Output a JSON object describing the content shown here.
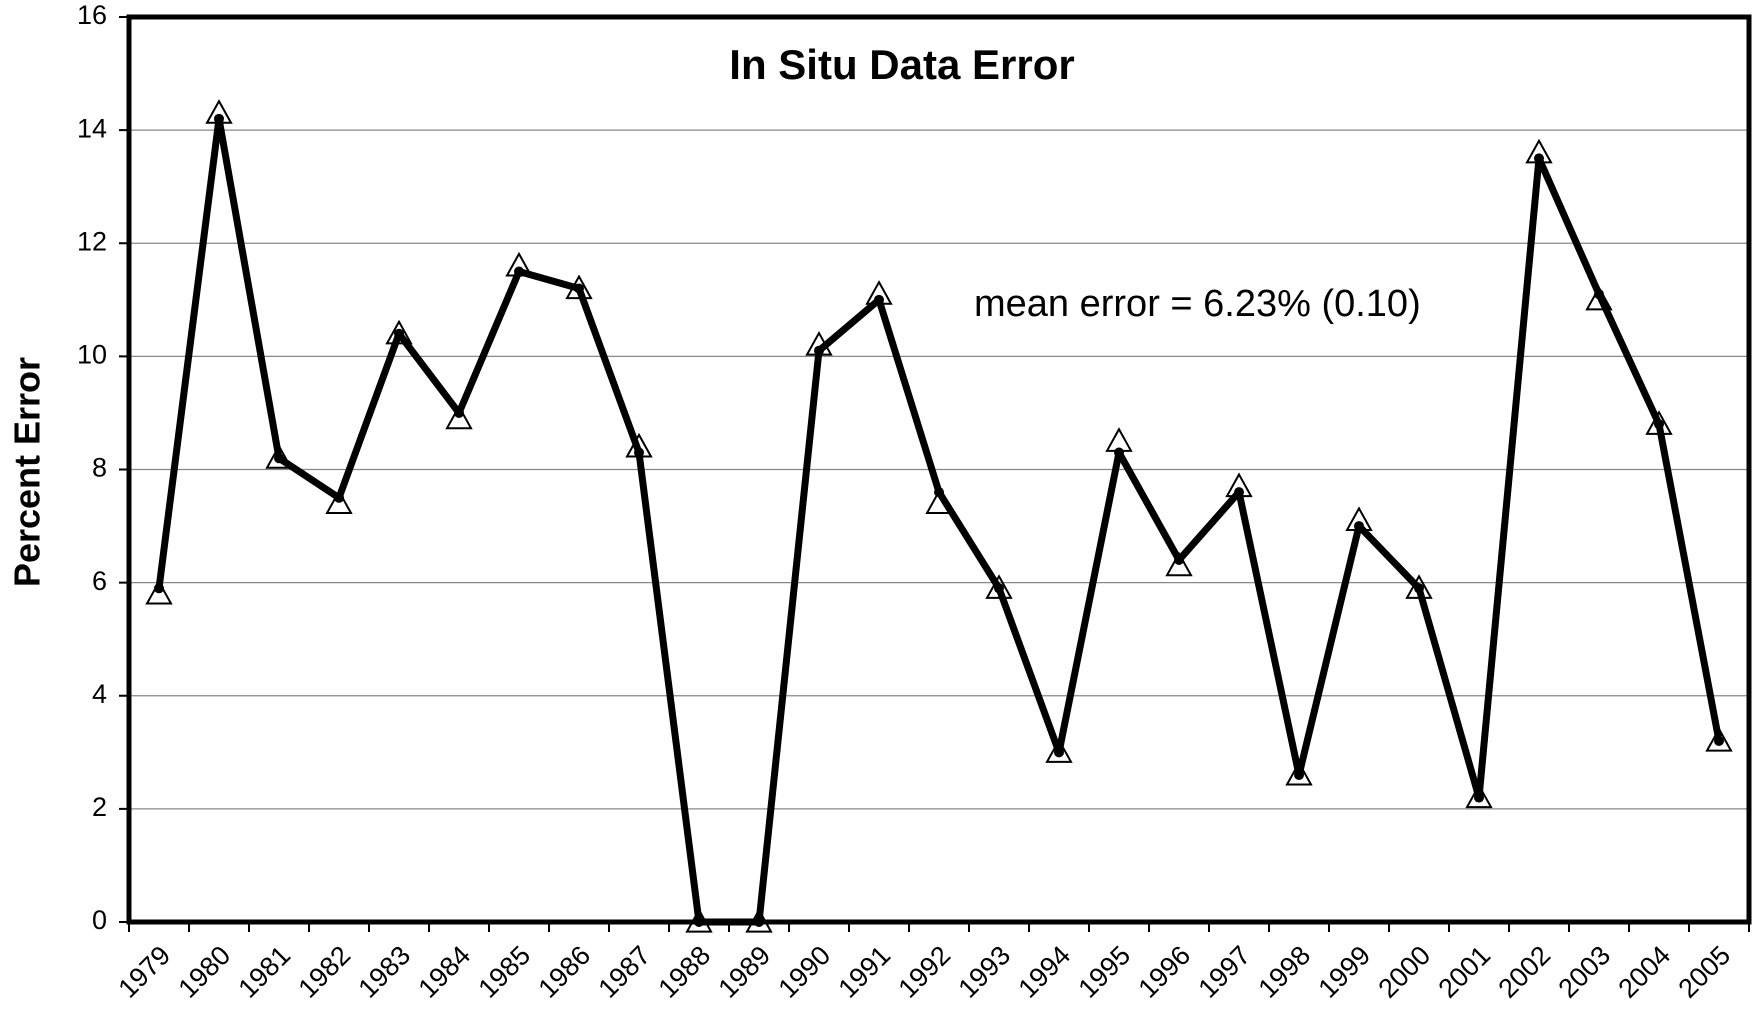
{
  "chart_data": {
    "type": "line",
    "title": "In Situ Data Error",
    "ylabel": "Percent Error",
    "annotation": "mean error = 6.23% (0.10)",
    "categories": [
      "1979",
      "1980",
      "1981",
      "1982",
      "1983",
      "1984",
      "1985",
      "1986",
      "1987",
      "1988",
      "1989",
      "1990",
      "1991",
      "1992",
      "1993",
      "1994",
      "1995",
      "1996",
      "1997",
      "1998",
      "1999",
      "2000",
      "2001",
      "2002",
      "2003",
      "2004",
      "2005"
    ],
    "series": [
      {
        "color": "#000000",
        "marker": "dot",
        "values": [
          5.9,
          14.2,
          8.2,
          7.5,
          10.4,
          9.0,
          11.5,
          11.2,
          8.3,
          0,
          0,
          10.1,
          11.0,
          7.6,
          5.9,
          3.0,
          8.3,
          6.4,
          7.6,
          2.6,
          7.0,
          5.9,
          2.2,
          13.5,
          11.1,
          8.8,
          3.2
        ]
      },
      {
        "color": "#000000",
        "marker": "triangle",
        "values": [
          5.8,
          14.3,
          8.2,
          7.4,
          10.4,
          8.9,
          11.6,
          11.2,
          8.4,
          0,
          0,
          10.2,
          11.1,
          7.4,
          5.9,
          3.0,
          8.5,
          6.3,
          7.7,
          2.6,
          7.1,
          5.9,
          2.2,
          13.6,
          11.0,
          8.8,
          3.2
        ]
      }
    ],
    "ylim": [
      0,
      16
    ],
    "yticks": [
      0,
      2,
      4,
      6,
      8,
      10,
      12,
      14,
      16
    ],
    "grid": true
  }
}
